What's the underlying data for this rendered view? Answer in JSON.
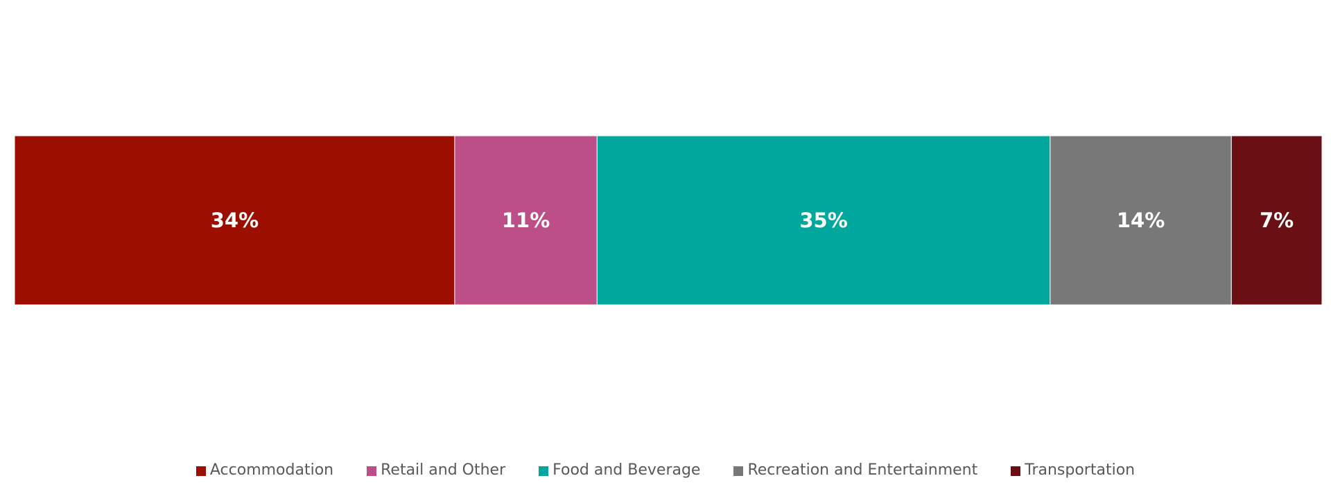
{
  "chart_data": {
    "type": "bar",
    "orientation": "horizontal",
    "stacked": true,
    "normalized": true,
    "value_unit": "%",
    "categories": [
      ""
    ],
    "series": [
      {
        "name": "Accommodation",
        "values": [
          34
        ],
        "label": "34%",
        "color": "#9B0E00"
      },
      {
        "name": "Retail and Other",
        "values": [
          11
        ],
        "label": "11%",
        "color": "#BC4F88"
      },
      {
        "name": "Food and Beverage",
        "values": [
          35
        ],
        "label": "35%",
        "color": "#00A79D"
      },
      {
        "name": "Recreation and Entertainment",
        "values": [
          14
        ],
        "label": "14%",
        "color": "#787878"
      },
      {
        "name": "Transportation",
        "values": [
          7
        ],
        "label": "7%",
        "color": "#6A1014"
      }
    ],
    "legend_position": "bottom",
    "grid": false,
    "axes_visible": false
  }
}
